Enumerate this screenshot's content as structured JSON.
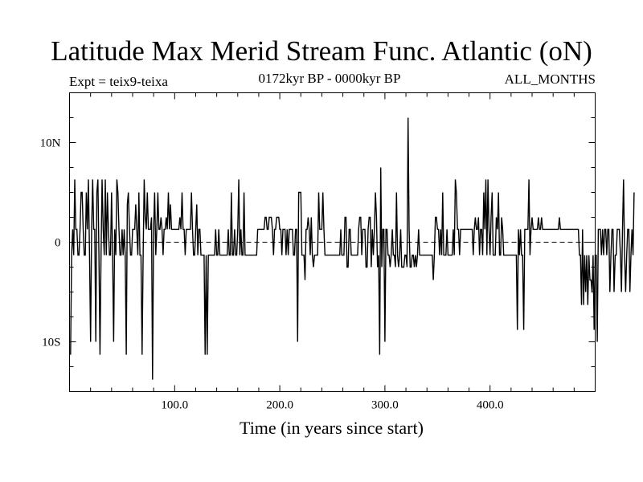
{
  "chart_data": {
    "type": "line",
    "title": "Latitude Max Merid Stream Func. Atlantic (oN)",
    "subtitle": "0172kyr BP - 0000kyr BP",
    "expt_label": "Expt = teix9-teixa",
    "months_label": "ALL_MONTHS",
    "xlabel": "Time (in years since start)",
    "ylabel": "",
    "xlim": [
      0,
      500
    ],
    "ylim": [
      -15,
      15
    ],
    "x_ticks": [
      {
        "value": 100,
        "label": "100.0"
      },
      {
        "value": 200,
        "label": "200.0"
      },
      {
        "value": 300,
        "label": "300.0"
      },
      {
        "value": 400,
        "label": "400.0"
      }
    ],
    "y_ticks": [
      {
        "value": 10,
        "label": "10N"
      },
      {
        "value": 0,
        "label": "0"
      },
      {
        "value": -10,
        "label": "10S"
      }
    ],
    "zero_line": "dashed",
    "grid": false,
    "series": [
      {
        "color": "#000000",
        "x_start": 1,
        "x_step": 1,
        "values": [
          -11.3,
          -1.3,
          1.3,
          -1.3,
          6.3,
          1.3,
          1.3,
          -1.3,
          -1.3,
          1.3,
          5.0,
          5.0,
          1.3,
          -1.3,
          -1.3,
          5.0,
          1.3,
          6.3,
          -1.3,
          -10.0,
          1.3,
          6.3,
          1.3,
          1.3,
          -10.0,
          5.0,
          6.3,
          -1.3,
          -11.3,
          -1.3,
          6.3,
          1.3,
          -1.3,
          6.3,
          -1.3,
          5.0,
          1.3,
          -1.3,
          -1.3,
          5.0,
          -1.3,
          -10.0,
          1.3,
          -1.3,
          6.3,
          5.0,
          1.3,
          -1.3,
          -1.3,
          1.3,
          -1.3,
          1.3,
          -1.3,
          -11.3,
          3.8,
          5.0,
          1.3,
          -1.3,
          -1.3,
          1.3,
          1.3,
          1.3,
          3.8,
          1.3,
          -1.3,
          5.0,
          -1.3,
          -1.3,
          -11.3,
          -1.3,
          6.3,
          2.5,
          1.3,
          5.0,
          1.3,
          1.3,
          1.3,
          2.5,
          -13.8,
          1.3,
          5.0,
          -1.3,
          1.3,
          5.0,
          1.3,
          1.3,
          2.5,
          1.3,
          -1.3,
          1.3,
          1.3,
          2.5,
          1.3,
          5.0,
          1.3,
          3.8,
          1.3,
          1.3,
          1.3,
          1.3,
          1.3,
          1.3,
          1.3,
          1.3,
          2.5,
          1.3,
          5.0,
          1.3,
          1.3,
          -1.3,
          1.3,
          1.3,
          1.3,
          1.3,
          1.3,
          5.0,
          1.3,
          -1.3,
          -1.3,
          1.3,
          3.8,
          -1.3,
          1.3,
          1.3,
          -1.3,
          -1.3,
          -1.3,
          -1.3,
          -11.3,
          -1.3,
          -11.3,
          -1.3,
          -1.3,
          -1.3,
          -1.3,
          -1.3,
          -1.3,
          -1.3,
          1.3,
          -1.3,
          -1.3,
          1.3,
          -1.3,
          -1.3,
          -1.3,
          -1.3,
          -1.3,
          -1.3,
          -1.3,
          -1.3,
          1.3,
          -1.3,
          -1.3,
          5.0,
          -1.3,
          -1.3,
          1.3,
          -1.3,
          -1.3,
          1.3,
          6.3,
          -1.3,
          1.3,
          -1.3,
          -1.3,
          5.0,
          -1.3,
          -1.3,
          -1.3,
          -1.3,
          -1.3,
          -1.3,
          -1.3,
          -1.3,
          -1.3,
          -1.3,
          -1.3,
          -1.3,
          1.3,
          1.3,
          1.3,
          1.3,
          1.3,
          1.3,
          1.3,
          2.5,
          2.5,
          1.3,
          1.3,
          2.5,
          2.5,
          2.5,
          1.3,
          -1.3,
          1.3,
          1.3,
          2.5,
          2.5,
          2.5,
          1.3,
          1.3,
          -1.3,
          1.3,
          1.3,
          1.3,
          -1.3,
          1.3,
          -1.3,
          1.3,
          1.3,
          1.3,
          1.3,
          -1.3,
          -1.3,
          1.3,
          1.3,
          -10.0,
          5.0,
          5.0,
          5.0,
          -1.3,
          -1.3,
          -1.3,
          -3.8,
          1.3,
          1.3,
          2.5,
          1.3,
          -1.3,
          2.5,
          -1.3,
          -2.5,
          -1.3,
          -1.3,
          -1.3,
          -1.3,
          5.0,
          1.3,
          1.3,
          1.3,
          5.0,
          1.3,
          -1.3,
          -1.3,
          -1.3,
          -1.3,
          -1.3,
          -1.3,
          -1.3,
          -1.3,
          -1.3,
          -1.3,
          -1.3,
          -1.3,
          -1.3,
          -1.3,
          -1.3,
          1.3,
          -1.3,
          -1.3,
          -1.3,
          2.5,
          2.5,
          -2.5,
          -2.5,
          1.3,
          1.3,
          -1.3,
          -1.3,
          -1.3,
          -1.3,
          -1.3,
          -1.3,
          -1.3,
          1.3,
          2.5,
          2.5,
          -1.3,
          1.3,
          1.3,
          1.3,
          -2.5,
          -2.5,
          1.3,
          2.5,
          2.5,
          -2.5,
          1.3,
          -1.3,
          1.3,
          5.0,
          2.5,
          -2.5,
          -1.3,
          -11.3,
          7.5,
          -2.5,
          1.3,
          1.3,
          -10.0,
          1.3,
          1.3,
          -1.3,
          -1.3,
          -2.5,
          -1.3,
          1.3,
          -1.3,
          -1.3,
          -2.5,
          5.0,
          -1.3,
          -2.5,
          -1.3,
          1.3,
          -2.5,
          -2.5,
          -2.5,
          -1.3,
          -1.3,
          -2.5,
          12.5,
          1.3,
          -2.5,
          -2.5,
          -1.3,
          -1.3,
          -2.5,
          -1.3,
          -2.5,
          -1.3,
          1.3,
          -1.3,
          -1.3,
          -1.3,
          -1.3,
          -1.3,
          -1.3,
          -1.3,
          -1.3,
          -1.3,
          -1.3,
          -1.3,
          -1.3,
          -1.3,
          -3.8,
          -1.3,
          2.5,
          2.5,
          1.3,
          1.3,
          -1.3,
          1.3,
          -1.3,
          5.0,
          -1.3,
          -1.3,
          -1.3,
          1.3,
          -1.3,
          -1.3,
          -1.3,
          -1.3,
          -1.3,
          1.3,
          -1.3,
          6.3,
          5.0,
          1.3,
          1.3,
          -1.3,
          1.3,
          1.3,
          1.3,
          1.3,
          1.3,
          1.3,
          1.3,
          1.3,
          1.3,
          1.3,
          1.3,
          1.3,
          -1.3,
          1.3,
          2.5,
          1.3,
          1.3,
          2.5,
          -1.3,
          1.3,
          1.3,
          -1.3,
          5.0,
          1.3,
          6.3,
          -1.3,
          6.3,
          1.3,
          -1.3,
          2.5,
          5.0,
          -1.3,
          -1.3,
          -1.3,
          2.5,
          1.3,
          5.0,
          -1.3,
          -1.3,
          2.5,
          1.3,
          -1.3,
          -1.3,
          -1.3,
          -1.3,
          -1.3,
          -1.3,
          -1.3,
          -1.3,
          -1.3,
          -1.3,
          -1.3,
          -1.3,
          -1.3,
          -8.8,
          1.3,
          -1.3,
          1.3,
          -1.3,
          -1.3,
          -8.8,
          1.3,
          1.3,
          1.3,
          1.3,
          6.3,
          -1.3,
          1.3,
          2.5,
          1.3,
          1.3,
          1.3,
          1.3,
          1.3,
          2.5,
          1.3,
          1.3,
          2.5,
          1.3,
          1.3,
          1.3,
          1.3,
          1.3,
          1.3,
          1.3,
          1.3,
          1.3,
          1.3,
          1.3,
          1.3,
          1.3,
          1.3,
          1.3,
          1.3,
          2.5,
          1.3,
          1.3,
          1.3,
          1.3,
          1.3,
          1.3,
          1.3,
          1.3,
          1.3,
          1.3,
          1.3,
          1.3,
          1.3,
          1.3,
          1.3,
          1.3,
          1.3,
          1.3,
          -1.3,
          -1.3,
          -6.3,
          1.3,
          -6.3,
          -1.3,
          -5.0,
          -1.3,
          -6.3,
          -1.3,
          -3.8,
          -3.8,
          -5.0,
          -1.3,
          -8.8,
          -1.3,
          -1.3,
          -10.0,
          1.3,
          1.3,
          1.3,
          -1.3,
          1.3,
          -1.3,
          1.3,
          1.3,
          -1.3,
          1.3,
          1.3,
          -5.0,
          -1.3,
          1.3,
          1.3,
          -5.0,
          -1.3,
          -1.3,
          1.3,
          1.3,
          1.3,
          -1.3,
          -5.0,
          1.3,
          6.3,
          -1.3,
          -5.0,
          -1.3,
          1.3,
          1.3,
          -5.0,
          -1.3,
          1.3,
          -1.3,
          5.0
        ]
      }
    ]
  }
}
